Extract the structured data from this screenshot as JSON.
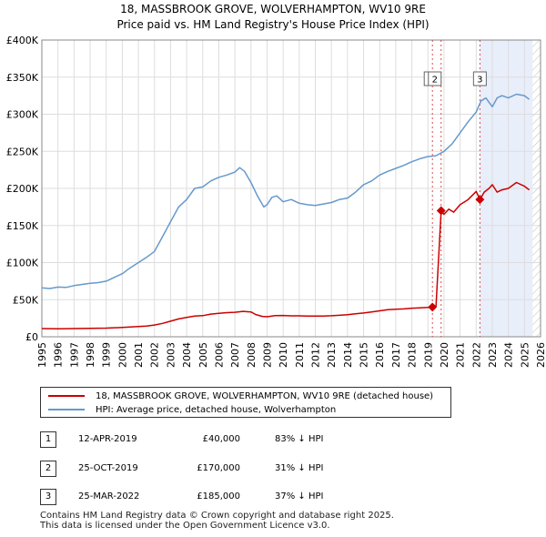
{
  "title_line1": "18, MASSBROOK GROVE, WOLVERHAMPTON, WV10 9RE",
  "title_line2": "Price paid vs. HM Land Registry's House Price Index (HPI)",
  "colors": {
    "property": "#cc0000",
    "hpi": "#6699cc",
    "shade": "#e8eefa",
    "marker_line": "#cc0000"
  },
  "legend": {
    "property_label": "18, MASSBROOK GROVE, WOLVERHAMPTON, WV10 9RE (detached house)",
    "hpi_label": "HPI: Average price, detached house, Wolverhampton"
  },
  "sales": [
    {
      "num": "1",
      "date": "12-APR-2019",
      "price": "£40,000",
      "hpi": "83% ↓ HPI"
    },
    {
      "num": "2",
      "date": "25-OCT-2019",
      "price": "£170,000",
      "hpi": "31% ↓ HPI"
    },
    {
      "num": "3",
      "date": "25-MAR-2022",
      "price": "£185,000",
      "hpi": "37% ↓ HPI"
    }
  ],
  "footer_line1": "Contains HM Land Registry data © Crown copyright and database right 2025.",
  "footer_line2": "This data is licensed under the Open Government Licence v3.0.",
  "chart_data": {
    "type": "line",
    "title": "18, MASSBROOK GROVE, WOLVERHAMPTON, WV10 9RE — Price paid vs. HM Land Registry's House Price Index (HPI)",
    "xlim": [
      1995,
      2026
    ],
    "ylim": [
      0,
      400000
    ],
    "x_ticks": [
      1995,
      1996,
      1997,
      1998,
      1999,
      2000,
      2001,
      2002,
      2003,
      2004,
      2005,
      2006,
      2007,
      2008,
      2009,
      2010,
      2011,
      2012,
      2013,
      2014,
      2015,
      2016,
      2017,
      2018,
      2019,
      2020,
      2021,
      2022,
      2023,
      2024,
      2025,
      2026
    ],
    "y_ticks": [
      {
        "value": 0,
        "label": "£0"
      },
      {
        "value": 50000,
        "label": "£50K"
      },
      {
        "value": 100000,
        "label": "£100K"
      },
      {
        "value": 150000,
        "label": "£150K"
      },
      {
        "value": 200000,
        "label": "£200K"
      },
      {
        "value": 250000,
        "label": "£250K"
      },
      {
        "value": 300000,
        "label": "£300K"
      },
      {
        "value": 350000,
        "label": "£350K"
      },
      {
        "value": 400000,
        "label": "£400K"
      }
    ],
    "shaded_range": [
      2022.23,
      2025.5
    ],
    "sale_markers": [
      {
        "label": "1",
        "x": 2019.28,
        "y": 40000
      },
      {
        "label": "2",
        "x": 2019.82,
        "y": 170000
      },
      {
        "label": "3",
        "x": 2022.23,
        "y": 185000
      }
    ],
    "series": [
      {
        "name": "HPI: Average price, detached house, Wolverhampton",
        "color": "#6699cc",
        "x": [
          1995,
          1995.5,
          1996,
          1996.5,
          1997,
          1997.5,
          1998,
          1998.5,
          1999,
          1999.5,
          2000,
          2000.5,
          2001,
          2001.5,
          2002,
          2002.5,
          2003,
          2003.5,
          2004,
          2004.5,
          2005,
          2005.5,
          2006,
          2006.5,
          2007,
          2007.3,
          2007.6,
          2008,
          2008.4,
          2008.8,
          2009,
          2009.3,
          2009.6,
          2010,
          2010.5,
          2011,
          2011.5,
          2012,
          2012.5,
          2013,
          2013.5,
          2014,
          2014.5,
          2015,
          2015.5,
          2016,
          2016.5,
          2017,
          2017.5,
          2018,
          2018.5,
          2019,
          2019.5,
          2020,
          2020.5,
          2021,
          2021.5,
          2022,
          2022.3,
          2022.6,
          2023,
          2023.3,
          2023.6,
          2024,
          2024.5,
          2025,
          2025.3
        ],
        "y": [
          66000,
          65000,
          67000,
          66500,
          69000,
          70500,
          72000,
          73000,
          75000,
          80000,
          85000,
          93000,
          100000,
          107000,
          115000,
          135000,
          155000,
          175000,
          185000,
          200000,
          202000,
          210000,
          215000,
          218000,
          222000,
          228000,
          223000,
          208000,
          190000,
          175000,
          178000,
          188000,
          190000,
          182000,
          185000,
          180000,
          178000,
          177000,
          179000,
          181000,
          185000,
          187000,
          195000,
          205000,
          210000,
          218000,
          223000,
          227000,
          231000,
          236000,
          240000,
          243000,
          244000,
          250000,
          260000,
          275000,
          290000,
          303000,
          318000,
          322000,
          310000,
          322000,
          325000,
          322000,
          327000,
          325000,
          320000
        ]
      },
      {
        "name": "18, MASSBROOK GROVE, WOLVERHAMPTON, WV10 9RE (detached house)",
        "color": "#cc0000",
        "x": [
          1995,
          1996,
          1997,
          1998,
          1999,
          2000,
          2001,
          2001.5,
          2002,
          2002.5,
          2003,
          2003.5,
          2004,
          2004.5,
          2005,
          2005.5,
          2006,
          2006.5,
          2007,
          2007.5,
          2008,
          2008.3,
          2008.7,
          2009,
          2009.5,
          2010,
          2010.5,
          2011,
          2011.5,
          2012,
          2012.5,
          2013,
          2013.5,
          2014,
          2014.5,
          2015,
          2015.5,
          2016,
          2016.5,
          2017,
          2017.5,
          2018,
          2018.5,
          2019,
          2019.28,
          2019.5,
          2019.82,
          2020,
          2020.3,
          2020.6,
          2021,
          2021.5,
          2022,
          2022.23,
          2022.5,
          2022.8,
          2023,
          2023.3,
          2023.6,
          2024,
          2024.5,
          2025,
          2025.3
        ],
        "y": [
          11000,
          10800,
          11000,
          11300,
          11600,
          12500,
          13700,
          14500,
          15800,
          18000,
          21000,
          24000,
          26000,
          28000,
          28500,
          30500,
          31500,
          32500,
          33000,
          34200,
          33500,
          30000,
          27500,
          27000,
          28500,
          28700,
          28200,
          28200,
          27900,
          27800,
          28000,
          28300,
          28900,
          29700,
          30900,
          32000,
          33500,
          35000,
          36500,
          37000,
          37500,
          38500,
          39000,
          39500,
          40000,
          40500,
          170000,
          165000,
          172000,
          168000,
          178000,
          185000,
          196000,
          185000,
          195000,
          200000,
          205000,
          195000,
          198000,
          200000,
          208000,
          203000,
          198000
        ]
      }
    ]
  }
}
